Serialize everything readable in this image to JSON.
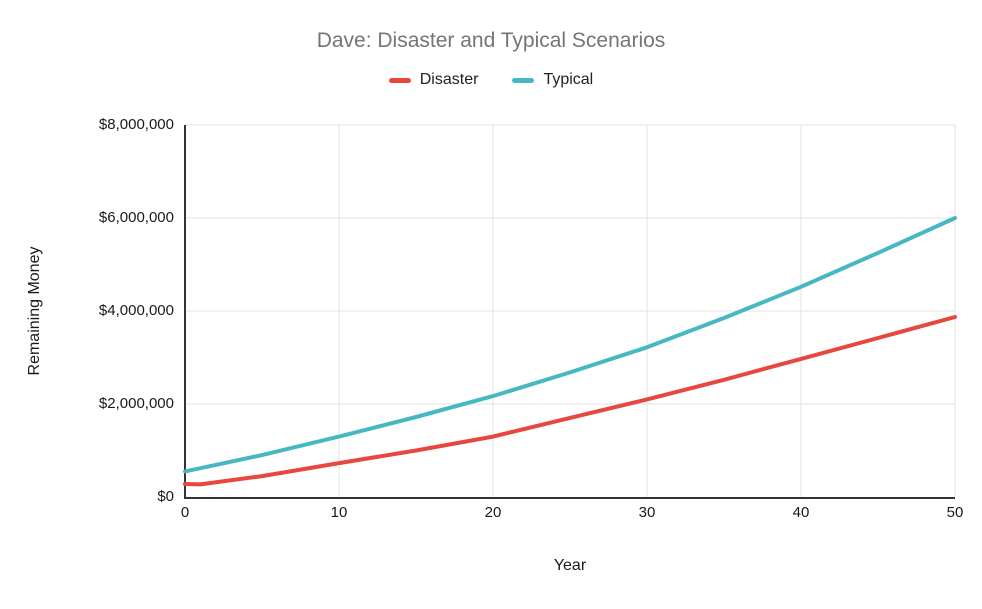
{
  "title": "Dave: Disaster and Typical Scenarios",
  "chart_data": {
    "type": "line",
    "title": "Dave: Disaster and Typical Scenarios",
    "xlabel": "Year",
    "ylabel": "Remaining Money",
    "xlim": [
      0,
      50
    ],
    "ylim": [
      0,
      8000000
    ],
    "grid": true,
    "legend_position": "top",
    "x_ticks": [
      0,
      10,
      20,
      30,
      40,
      50
    ],
    "y_ticks": [
      0,
      2000000,
      4000000,
      6000000,
      8000000
    ],
    "y_tick_labels": [
      "$0",
      "$2,000,000",
      "$4,000,000",
      "$6,000,000",
      "$8,000,000"
    ],
    "x": [
      0,
      1,
      5,
      10,
      15,
      20,
      25,
      30,
      35,
      40,
      45,
      50
    ],
    "series": [
      {
        "name": "Disaster",
        "color": "#e8473e",
        "values": [
          280000,
          270000,
          450000,
          730000,
          1000000,
          1300000,
          1700000,
          2100000,
          2520000,
          2970000,
          3420000,
          3870000
        ]
      },
      {
        "name": "Typical",
        "color": "#47b8c2",
        "values": [
          550000,
          620000,
          900000,
          1300000,
          1720000,
          2170000,
          2680000,
          3220000,
          3850000,
          4520000,
          5250000,
          6000000
        ]
      }
    ]
  },
  "colors": {
    "title_text": "#757575",
    "axis_text": "#1a1a1a",
    "gridline": "#e3e3e3",
    "axis_line": "#333333",
    "background": "#ffffff"
  }
}
